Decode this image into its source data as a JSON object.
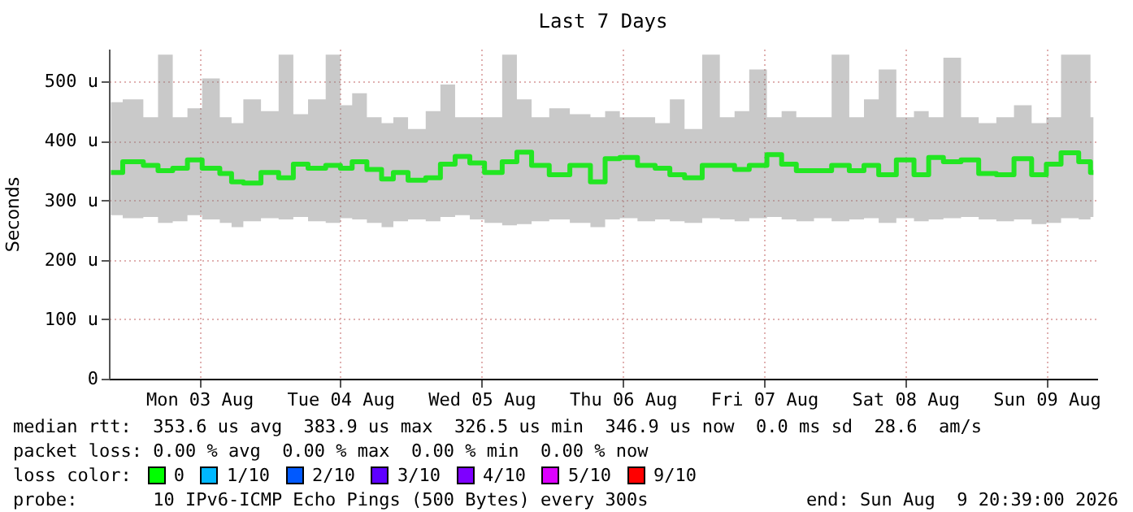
{
  "chart_data": {
    "type": "step",
    "title": "Last 7 Days",
    "ylabel": "Seconds",
    "x": [
      "2026-08-02T21:00",
      "2026-08-03T01:00",
      "2026-08-03T04:00",
      "2026-08-03T06:00",
      "2026-08-03T09:00",
      "2026-08-03T11:00",
      "2026-08-03T14:00",
      "2026-08-03T17:00",
      "2026-08-03T18:00",
      "2026-08-03T21:00",
      "2026-08-04T00:00",
      "2026-08-04T03:00",
      "2026-08-04T05:00",
      "2026-08-04T08:00",
      "2026-08-04T11:00",
      "2026-08-04T13:00",
      "2026-08-04T15:00",
      "2026-08-04T18:00",
      "2026-08-04T20:00",
      "2026-08-04T22:00",
      "2026-08-05T01:00",
      "2026-08-05T04:00",
      "2026-08-05T06:00",
      "2026-08-05T09:00",
      "2026-08-05T11:00",
      "2026-08-05T14:00",
      "2026-08-05T17:00",
      "2026-08-05T19:00",
      "2026-08-05T22:00",
      "2026-08-06T01:00",
      "2026-08-06T05:00",
      "2026-08-06T08:00",
      "2026-08-06T10:00",
      "2026-08-06T13:00",
      "2026-08-06T16:00",
      "2026-08-06T19:00",
      "2026-08-06T21:00",
      "2026-08-07T00:00",
      "2026-08-07T03:00",
      "2026-08-07T06:00",
      "2026-08-07T08:00",
      "2026-08-07T11:00",
      "2026-08-07T14:00",
      "2026-08-07T16:00",
      "2026-08-07T19:00",
      "2026-08-07T22:00",
      "2026-08-08T01:00",
      "2026-08-08T04:00",
      "2026-08-08T06:00",
      "2026-08-08T09:00",
      "2026-08-08T12:00",
      "2026-08-08T15:00",
      "2026-08-08T17:00",
      "2026-08-08T20:00",
      "2026-08-08T23:00",
      "2026-08-09T02:00",
      "2026-08-09T05:00",
      "2026-08-09T08:00",
      "2026-08-09T11:00",
      "2026-08-09T13:00",
      "2026-08-09T16:00",
      "2026-08-09T19:00",
      "2026-08-09T20:00"
    ],
    "series": [
      {
        "color": "#22e622",
        "values": [
          347,
          365,
          359,
          350,
          354,
          368,
          354,
          345,
          331,
          329,
          347,
          338,
          361,
          354,
          359,
          354,
          365,
          352,
          336,
          347,
          334,
          338,
          361,
          374,
          363,
          347,
          365,
          381,
          359,
          343,
          359,
          331,
          370,
          372,
          359,
          354,
          343,
          338,
          359,
          359,
          352,
          359,
          377,
          361,
          350,
          350,
          359,
          350,
          359,
          343,
          368,
          343,
          372,
          365,
          368,
          345,
          343,
          370,
          343,
          361,
          380,
          365,
          347
        ],
        "lower": [
          275,
          270,
          272,
          262,
          265,
          275,
          268,
          262,
          255,
          265,
          270,
          268,
          272,
          265,
          262,
          270,
          268,
          262,
          255,
          265,
          268,
          265,
          272,
          275,
          268,
          262,
          258,
          260,
          265,
          268,
          262,
          255,
          268,
          270,
          265,
          268,
          265,
          262,
          270,
          268,
          265,
          270,
          272,
          268,
          265,
          270,
          265,
          268,
          270,
          262,
          270,
          265,
          268,
          270,
          272,
          268,
          265,
          268,
          260,
          262,
          270,
          268,
          272
        ],
        "upper": [
          465,
          470,
          440,
          545,
          440,
          455,
          505,
          440,
          430,
          470,
          450,
          545,
          445,
          470,
          545,
          460,
          480,
          440,
          430,
          440,
          420,
          450,
          495,
          440,
          440,
          440,
          545,
          470,
          440,
          455,
          445,
          440,
          450,
          440,
          440,
          430,
          470,
          420,
          545,
          440,
          450,
          520,
          440,
          450,
          440,
          440,
          545,
          440,
          470,
          520,
          440,
          450,
          440,
          540,
          440,
          430,
          440,
          460,
          430,
          440,
          545,
          545,
          440
        ]
      }
    ],
    "ylim": [
      0,
      555
    ],
    "yticks": [
      0,
      {
        "value": 100,
        "label": "100 u"
      },
      {
        "value": 200,
        "label": "200 u"
      },
      {
        "value": 300,
        "label": "300 u"
      },
      {
        "value": 400,
        "label": "400 u"
      },
      {
        "value": 500,
        "label": "500 u"
      }
    ],
    "xlim": [
      "2026-08-02T20:39",
      "2026-08-09T20:39"
    ],
    "xticks": [
      {
        "value": "2026-08-03T12:00",
        "label": "Mon 03 Aug"
      },
      {
        "value": "2026-08-04T12:00",
        "label": "Tue 04 Aug"
      },
      {
        "value": "2026-08-05T12:00",
        "label": "Wed 05 Aug"
      },
      {
        "value": "2026-08-06T12:00",
        "label": "Thu 06 Aug"
      },
      {
        "value": "2026-08-07T12:00",
        "label": "Fri 07 Aug"
      },
      {
        "value": "2026-08-08T12:00",
        "label": "Sat 08 Aug"
      },
      {
        "value": "2026-08-09T12:00",
        "label": "Sun 09 Aug"
      }
    ],
    "grid": true,
    "annotations": [
      "median rtt:  353.6 us avg  383.9 us max  326.5 us min  346.9 us now  0.0 ms sd  28.6  am/s",
      "packet loss: 0.00 % avg  0.00 % max  0.00 % min  0.00 % now",
      "loss color:",
      "0",
      "1/10",
      "2/10",
      "3/10",
      "4/10",
      "5/10",
      "9/10",
      "probe:       10 IPv6-ICMP Echo Pings (500 Bytes) every 300s",
      "end: Sun Aug  9 20:39:00 2026"
    ]
  }
}
